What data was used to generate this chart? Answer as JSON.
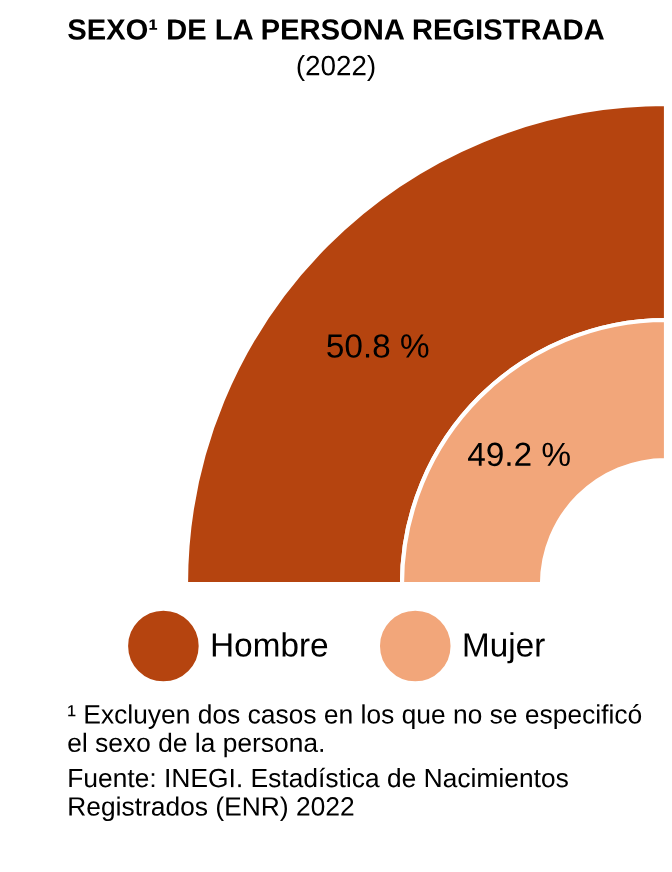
{
  "chart_data": {
    "type": "other",
    "title": "SEXO¹ DE LA PERSONA REGISTRADA",
    "subtitle": "(2022)",
    "categories": [
      "Hombre",
      "Mujer"
    ],
    "values": [
      50.8,
      49.2
    ],
    "colors": [
      "#b5440f",
      "#f2a67a"
    ],
    "value_labels": [
      "50.8 %",
      "49.2 %"
    ],
    "annotations": [
      "¹ Excluyen dos casos en los que no se especificó el sexo de la persona.",
      "Fuente: INEGI. Estadística de Nacimientos Registrados (ENR) 2022"
    ]
  }
}
